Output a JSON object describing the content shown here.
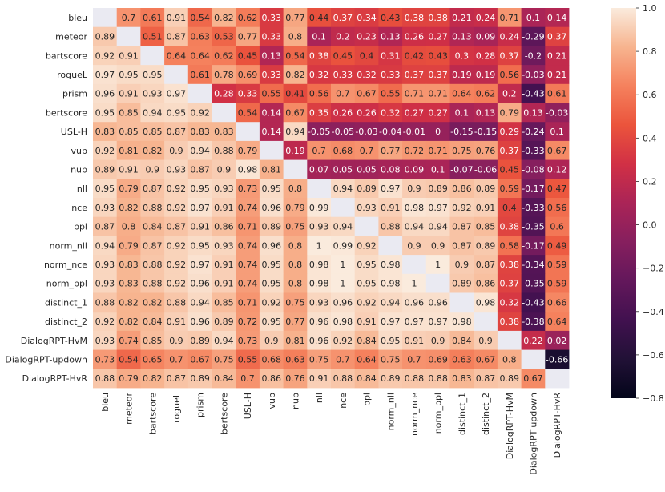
{
  "chart_data": {
    "type": "heatmap",
    "rows": [
      "bleu",
      "meteor",
      "bartscore",
      "rogueL",
      "prism",
      "bertscore",
      "USL-H",
      "vup",
      "nup",
      "nll",
      "nce",
      "ppl",
      "norm_nll",
      "norm_nce",
      "norm_ppl",
      "distinct_1",
      "distinct_2",
      "DialogRPT-HvM",
      "DialogRPT-updown",
      "DialogRPT-HvR"
    ],
    "columns": [
      "bleu",
      "meteor",
      "bartscore",
      "rogueL",
      "prism",
      "bertscore",
      "USL-H",
      "vup",
      "nup",
      "nll",
      "nce",
      "ppl",
      "norm_nll",
      "norm_nce",
      "norm_ppl",
      "distinct_1",
      "distinct_2",
      "DialogRPT-HvM",
      "DialogRPT-updown",
      "DialogRPT-HvR"
    ],
    "values": [
      [
        null,
        0.7,
        0.61,
        0.91,
        0.54,
        0.82,
        0.62,
        0.33,
        0.77,
        0.44,
        0.37,
        0.34,
        0.43,
        0.38,
        0.38,
        0.21,
        0.24,
        0.71,
        0.1,
        0.14
      ],
      [
        0.89,
        null,
        0.51,
        0.87,
        0.63,
        0.53,
        0.77,
        0.33,
        0.8,
        0.1,
        0.2,
        0.23,
        0.13,
        0.26,
        0.27,
        0.13,
        0.09,
        0.24,
        -0.29,
        0.37
      ],
      [
        0.92,
        0.91,
        null,
        0.64,
        0.64,
        0.62,
        0.45,
        0.13,
        0.54,
        0.38,
        0.45,
        0.4,
        0.31,
        0.42,
        0.43,
        0.3,
        0.28,
        0.37,
        -0.2,
        0.21
      ],
      [
        0.97,
        0.95,
        0.95,
        null,
        0.61,
        0.78,
        0.69,
        0.33,
        0.82,
        0.32,
        0.33,
        0.32,
        0.33,
        0.37,
        0.37,
        0.19,
        0.19,
        0.56,
        -0.03,
        0.21
      ],
      [
        0.96,
        0.91,
        0.93,
        0.97,
        null,
        0.28,
        0.33,
        0.55,
        0.41,
        0.56,
        0.7,
        0.67,
        0.55,
        0.71,
        0.71,
        0.64,
        0.62,
        0.2,
        -0.43,
        0.61
      ],
      [
        0.95,
        0.85,
        0.94,
        0.95,
        0.92,
        null,
        0.54,
        0.14,
        0.67,
        0.35,
        0.26,
        0.26,
        0.32,
        0.27,
        0.27,
        0.1,
        0.13,
        0.79,
        0.13,
        -0.03
      ],
      [
        0.83,
        0.85,
        0.85,
        0.87,
        0.83,
        0.83,
        null,
        0.14,
        0.94,
        -0.05,
        -0.05,
        -0.03,
        -0.04,
        -0.01,
        0,
        -0.15,
        -0.15,
        0.29,
        -0.24,
        0.1
      ],
      [
        0.92,
        0.81,
        0.82,
        0.9,
        0.94,
        0.88,
        0.79,
        null,
        0.19,
        0.7,
        0.68,
        0.7,
        0.77,
        0.72,
        0.71,
        0.75,
        0.76,
        0.37,
        -0.33,
        0.67
      ],
      [
        0.89,
        0.91,
        0.9,
        0.93,
        0.87,
        0.9,
        0.98,
        0.81,
        null,
        0.07,
        0.05,
        0.05,
        0.08,
        0.09,
        0.1,
        -0.07,
        -0.06,
        0.45,
        -0.08,
        0.12
      ],
      [
        0.95,
        0.79,
        0.87,
        0.92,
        0.95,
        0.93,
        0.73,
        0.95,
        0.8,
        null,
        0.94,
        0.89,
        0.97,
        0.9,
        0.89,
        0.86,
        0.89,
        0.59,
        -0.17,
        0.47
      ],
      [
        0.93,
        0.82,
        0.88,
        0.92,
        0.97,
        0.91,
        0.74,
        0.96,
        0.79,
        0.99,
        null,
        0.93,
        0.91,
        0.98,
        0.97,
        0.92,
        0.91,
        0.4,
        -0.33,
        0.56
      ],
      [
        0.87,
        0.8,
        0.84,
        0.87,
        0.91,
        0.86,
        0.71,
        0.89,
        0.75,
        0.93,
        0.94,
        null,
        0.88,
        0.94,
        0.94,
        0.87,
        0.85,
        0.38,
        -0.35,
        0.6
      ],
      [
        0.94,
        0.79,
        0.87,
        0.92,
        0.95,
        0.93,
        0.74,
        0.96,
        0.8,
        1,
        0.99,
        0.92,
        null,
        0.9,
        0.9,
        0.87,
        0.89,
        0.58,
        -0.17,
        0.49
      ],
      [
        0.93,
        0.83,
        0.88,
        0.92,
        0.97,
        0.91,
        0.74,
        0.95,
        0.8,
        0.98,
        1,
        0.95,
        0.98,
        null,
        1,
        0.9,
        0.87,
        0.38,
        -0.34,
        0.59
      ],
      [
        0.93,
        0.83,
        0.88,
        0.92,
        0.96,
        0.91,
        0.74,
        0.95,
        0.8,
        0.98,
        1,
        0.95,
        0.98,
        1,
        null,
        0.89,
        0.86,
        0.37,
        -0.35,
        0.59
      ],
      [
        0.88,
        0.82,
        0.82,
        0.88,
        0.94,
        0.85,
        0.71,
        0.92,
        0.75,
        0.93,
        0.96,
        0.92,
        0.94,
        0.96,
        0.96,
        null,
        0.98,
        0.32,
        -0.43,
        0.66
      ],
      [
        0.92,
        0.82,
        0.84,
        0.91,
        0.96,
        0.89,
        0.72,
        0.95,
        0.77,
        0.96,
        0.98,
        0.91,
        0.97,
        0.97,
        0.97,
        0.98,
        null,
        0.38,
        -0.38,
        0.64
      ],
      [
        0.93,
        0.74,
        0.85,
        0.9,
        0.89,
        0.94,
        0.73,
        0.9,
        0.81,
        0.96,
        0.92,
        0.84,
        0.95,
        0.91,
        0.9,
        0.84,
        0.9,
        null,
        0.22,
        0.02
      ],
      [
        0.73,
        0.54,
        0.65,
        0.7,
        0.67,
        0.75,
        0.55,
        0.68,
        0.63,
        0.75,
        0.7,
        0.64,
        0.75,
        0.7,
        0.69,
        0.63,
        0.67,
        0.8,
        null,
        -0.66
      ],
      [
        0.88,
        0.79,
        0.82,
        0.87,
        0.89,
        0.84,
        0.7,
        0.86,
        0.76,
        0.91,
        0.88,
        0.84,
        0.89,
        0.88,
        0.88,
        0.83,
        0.87,
        0.89,
        0.67,
        null
      ]
    ],
    "colorbar": {
      "range": [
        -0.8,
        1.0
      ],
      "ticks": [
        "1.0",
        "0.8",
        "0.6",
        "0.4",
        "0.2",
        "0.0",
        "−0.2",
        "−0.4",
        "−0.6",
        "−0.8"
      ],
      "tick_values": [
        1.0,
        0.8,
        0.6,
        0.4,
        0.2,
        0.0,
        -0.2,
        -0.4,
        -0.6,
        -0.8
      ]
    },
    "colormap": "rocket",
    "diagonal_color": "#eaeaf2",
    "title": "",
    "xlabel": "",
    "ylabel": ""
  }
}
